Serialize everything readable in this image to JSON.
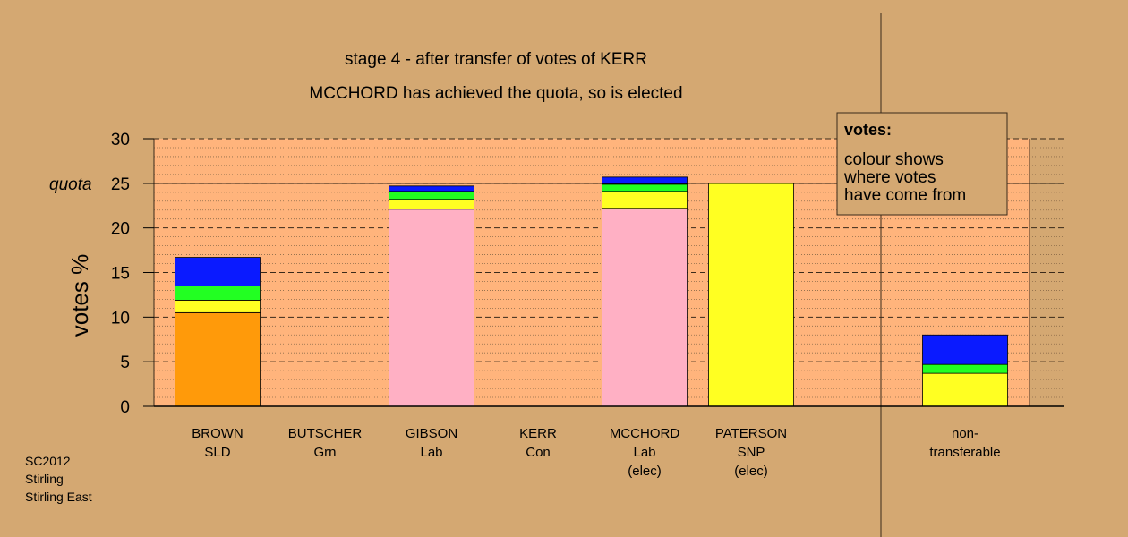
{
  "chart_data": {
    "type": "bar",
    "stacked": true,
    "title": "stage 4 - after transfer of votes of KERR",
    "subtitle": "MCCHORD has achieved the quota, so is elected",
    "ylabel": "votes %",
    "ylim": [
      0,
      30
    ],
    "yticks": [
      "0",
      "5",
      "10",
      "15",
      "20",
      "25",
      "30"
    ],
    "quota_value": 25,
    "quota_label": "quota",
    "grid": true,
    "categories": [
      [
        "BROWN",
        "SLD"
      ],
      [
        "BUTSCHER",
        "Grn"
      ],
      [
        "GIBSON",
        "Lab"
      ],
      [
        "KERR",
        "Con"
      ],
      [
        "MCCHORD",
        "Lab",
        "(elec)"
      ],
      [
        "PATERSON",
        "SNP",
        "(elec)"
      ],
      [
        "non-",
        "transferable"
      ]
    ],
    "stacks": [
      [
        {
          "color": "#ff9a0a",
          "value": 10.5
        },
        {
          "color": "#ffff22",
          "value": 1.4
        },
        {
          "color": "#22ff22",
          "value": 1.6
        },
        {
          "color": "#0a1aff",
          "value": 3.2
        }
      ],
      [],
      [
        {
          "color": "#ffb0c4",
          "value": 22.1
        },
        {
          "color": "#ffff22",
          "value": 1.1
        },
        {
          "color": "#22ff22",
          "value": 0.9
        },
        {
          "color": "#0a1aff",
          "value": 0.6
        }
      ],
      [],
      [
        {
          "color": "#ffb0c4",
          "value": 22.2
        },
        {
          "color": "#ffff22",
          "value": 1.9
        },
        {
          "color": "#22ff22",
          "value": 0.8
        },
        {
          "color": "#0a1aff",
          "value": 0.8
        }
      ],
      [
        {
          "color": "#ffff22",
          "value": 25.0
        }
      ],
      [
        {
          "color": "#ffff22",
          "value": 3.7
        },
        {
          "color": "#22ff22",
          "value": 1.0
        },
        {
          "color": "#0a1aff",
          "value": 3.3
        }
      ]
    ]
  },
  "legend": {
    "title": "votes:",
    "lines": [
      "colour shows",
      "where votes",
      "have come from"
    ]
  },
  "footer": [
    "SC2012",
    "Stirling",
    "Stirling East"
  ]
}
